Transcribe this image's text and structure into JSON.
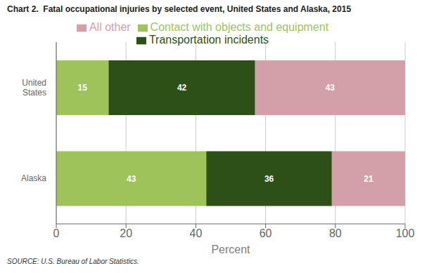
{
  "chart_data": {
    "type": "bar",
    "orientation": "horizontal",
    "stacked": true,
    "title": "Chart 2.  Fatal occupational injuries by selected event, United States and Alaska, 2015",
    "categories": [
      "Alaska",
      "United\nStates"
    ],
    "series": [
      {
        "name": "Contact with objects and equipment",
        "color": "#9DC35A",
        "values": [
          43,
          15
        ]
      },
      {
        "name": "Transportation incidents",
        "color": "#2D5016",
        "values": [
          36,
          42
        ]
      },
      {
        "name": "All other",
        "color": "#D4A0A8",
        "values": [
          21,
          43
        ]
      }
    ],
    "xlabel": "Percent",
    "xlim": [
      0,
      100
    ],
    "xticks": [
      0,
      20,
      40,
      60,
      80,
      100
    ],
    "grid": true,
    "data_labels": true,
    "legend": "top",
    "annotations": [
      "SOURCE: U.S. Bureau of Labor Statistics."
    ]
  }
}
